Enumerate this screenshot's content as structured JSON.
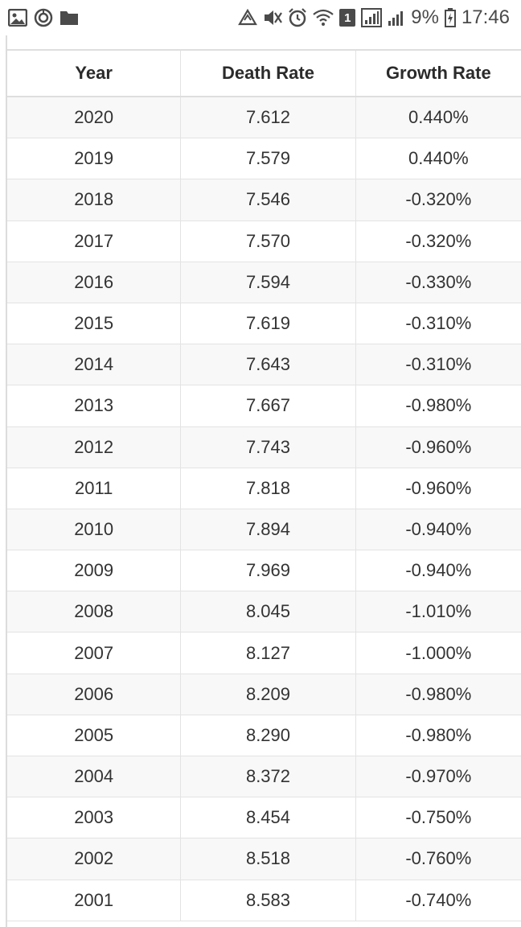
{
  "status_bar": {
    "battery_percent": "9%",
    "time": "17:46",
    "sim_badge": "1"
  },
  "table": {
    "headers": [
      "Year",
      "Death Rate",
      "Growth Rate"
    ],
    "rows": [
      [
        "2020",
        "7.612",
        "0.440%"
      ],
      [
        "2019",
        "7.579",
        "0.440%"
      ],
      [
        "2018",
        "7.546",
        "-0.320%"
      ],
      [
        "2017",
        "7.570",
        "-0.320%"
      ],
      [
        "2016",
        "7.594",
        "-0.330%"
      ],
      [
        "2015",
        "7.619",
        "-0.310%"
      ],
      [
        "2014",
        "7.643",
        "-0.310%"
      ],
      [
        "2013",
        "7.667",
        "-0.980%"
      ],
      [
        "2012",
        "7.743",
        "-0.960%"
      ],
      [
        "2011",
        "7.818",
        "-0.960%"
      ],
      [
        "2010",
        "7.894",
        "-0.940%"
      ],
      [
        "2009",
        "7.969",
        "-0.940%"
      ],
      [
        "2008",
        "8.045",
        "-1.010%"
      ],
      [
        "2007",
        "8.127",
        "-1.000%"
      ],
      [
        "2006",
        "8.209",
        "-0.980%"
      ],
      [
        "2005",
        "8.290",
        "-0.980%"
      ],
      [
        "2004",
        "8.372",
        "-0.970%"
      ],
      [
        "2003",
        "8.454",
        "-0.750%"
      ],
      [
        "2002",
        "8.518",
        "-0.760%"
      ],
      [
        "2001",
        "8.583",
        "-0.740%"
      ]
    ]
  }
}
